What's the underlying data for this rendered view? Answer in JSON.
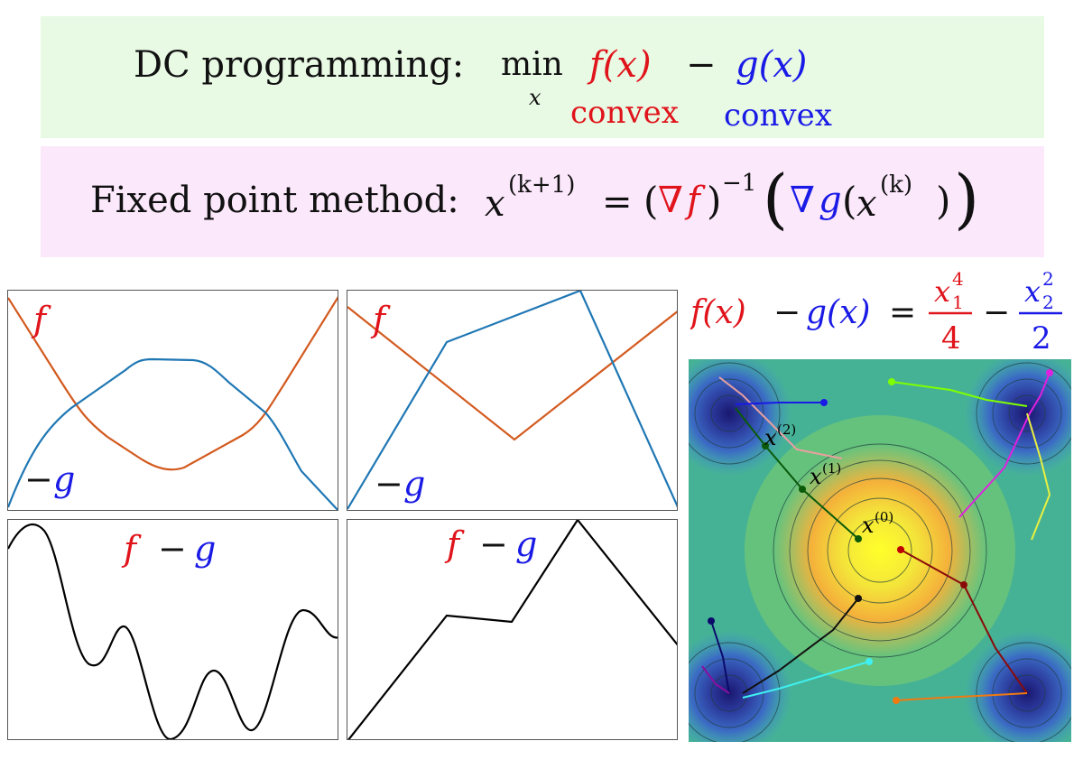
{
  "colors": {
    "f_red": "#e0141b",
    "g_blue": "#1a1ae6",
    "curve_orange": "#d35a1f",
    "curve_blue": "#1f77b4",
    "banner_green": "#e8f9e4",
    "banner_pink": "#fbe8fb"
  },
  "dc_banner": {
    "label": "DC programming:",
    "min": "min",
    "min_sub": "x",
    "f_expr": "f(x)",
    "minus": "−",
    "g_expr": "g(x)",
    "f_note": "convex",
    "g_note": "convex"
  },
  "fp_banner": {
    "label": "Fixed point method:",
    "lhs_var": "x",
    "lhs_sup": "(k+1)",
    "equals": "=",
    "nabla": "∇",
    "f": "f",
    "inv_sup": "−1",
    "g": "g",
    "inner_var": "x",
    "inner_sup": "(k)"
  },
  "panels": {
    "top_left": {
      "f_label": "f",
      "neg_sign": "−",
      "g_label": "g"
    },
    "top_mid": {
      "f_label": "f",
      "neg_sign": "−",
      "g_label": "g"
    },
    "bottom_left": {
      "f_label": "f",
      "minus": "−",
      "g_label": "g"
    },
    "bottom_mid": {
      "f_label": "f",
      "minus": "−",
      "g_label": "g"
    }
  },
  "formula": {
    "lhs_f": "f(x)",
    "minus": "−",
    "lhs_g": "g(x)",
    "equals": "=",
    "num1_var": "x",
    "num1_sub": "1",
    "num1_sup": "4",
    "den1": "4",
    "minus2": "−",
    "num2_var": "x",
    "num2_sub": "2",
    "num2_sup": "2",
    "den2": "2"
  },
  "contour": {
    "labels": {
      "x0": "x",
      "x0_sup": "(0)",
      "x1": "x",
      "x1_sup": "(1)",
      "x2": "x",
      "x2_sup": "(2)"
    }
  }
}
